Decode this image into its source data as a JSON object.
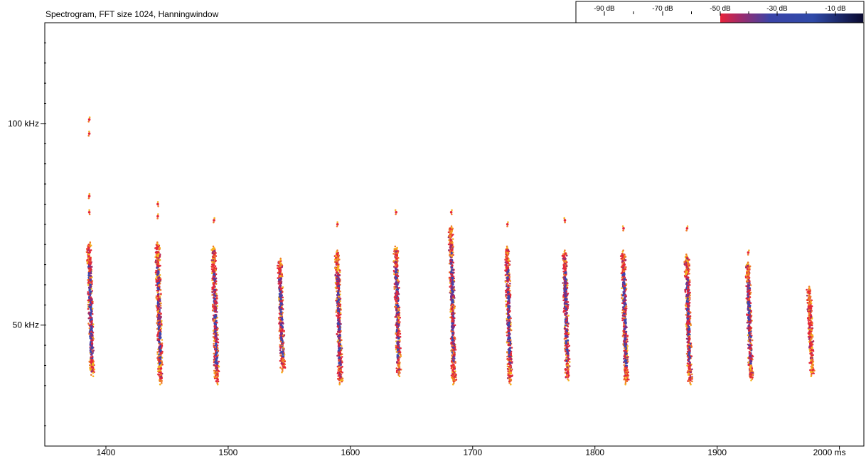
{
  "chart_data": {
    "type": "heatmap",
    "title": "Spectrogram, FFT size 1024, Hanningwindow",
    "x_axis": {
      "range": [
        1350,
        2020
      ],
      "ticks": [
        1400,
        1500,
        1600,
        1700,
        1800,
        1900,
        2000
      ],
      "tick_labels": [
        "1400",
        "1500",
        "1600",
        "1700",
        "1800",
        "1900",
        "2000 ms"
      ]
    },
    "y_axis": {
      "unit": "kHz",
      "range": [
        20,
        125
      ],
      "minor_ticks": [
        25,
        35,
        40,
        45,
        55,
        60,
        65,
        70,
        75,
        80,
        85,
        90,
        95,
        105,
        110,
        115,
        120
      ],
      "labeled_ticks": [
        50,
        100
      ],
      "tick_labels": [
        "50 kHz",
        "100 kHz"
      ]
    },
    "color_scale": {
      "labels": [
        "-90 dB",
        "-70 dB",
        "-50 dB",
        "-30 dB",
        "-10 dB"
      ],
      "colors": [
        "#ffffff",
        "#ffffff",
        "#e8223a",
        "#2f4aa8",
        "#0a0a30"
      ]
    },
    "pulses": [
      {
        "time_ms": 1387,
        "f_start_khz": 70,
        "f_end_khz": 38,
        "outliers_khz": [
          101,
          97.5,
          78,
          82
        ]
      },
      {
        "time_ms": 1443,
        "f_start_khz": 70,
        "f_end_khz": 36,
        "outliers_khz": [
          77,
          80
        ]
      },
      {
        "time_ms": 1489,
        "f_start_khz": 69,
        "f_end_khz": 36,
        "outliers_khz": [
          76
        ]
      },
      {
        "time_ms": 1543,
        "f_start_khz": 66,
        "f_end_khz": 39,
        "outliers_khz": []
      },
      {
        "time_ms": 1590,
        "f_start_khz": 68,
        "f_end_khz": 36,
        "outliers_khz": [
          75
        ]
      },
      {
        "time_ms": 1638,
        "f_start_khz": 69,
        "f_end_khz": 38,
        "outliers_khz": [
          78
        ]
      },
      {
        "time_ms": 1683,
        "f_start_khz": 74,
        "f_end_khz": 36,
        "outliers_khz": [
          78
        ]
      },
      {
        "time_ms": 1729,
        "f_start_khz": 69,
        "f_end_khz": 36,
        "outliers_khz": [
          75
        ]
      },
      {
        "time_ms": 1776,
        "f_start_khz": 68,
        "f_end_khz": 37,
        "outliers_khz": [
          76
        ]
      },
      {
        "time_ms": 1824,
        "f_start_khz": 68,
        "f_end_khz": 36,
        "outliers_khz": [
          74
        ]
      },
      {
        "time_ms": 1876,
        "f_start_khz": 67,
        "f_end_khz": 36,
        "outliers_khz": [
          74
        ]
      },
      {
        "time_ms": 1926,
        "f_start_khz": 65,
        "f_end_khz": 37,
        "outliers_khz": [
          68
        ]
      },
      {
        "time_ms": 1976,
        "f_start_khz": 59,
        "f_end_khz": 38,
        "outliers_khz": []
      }
    ]
  }
}
